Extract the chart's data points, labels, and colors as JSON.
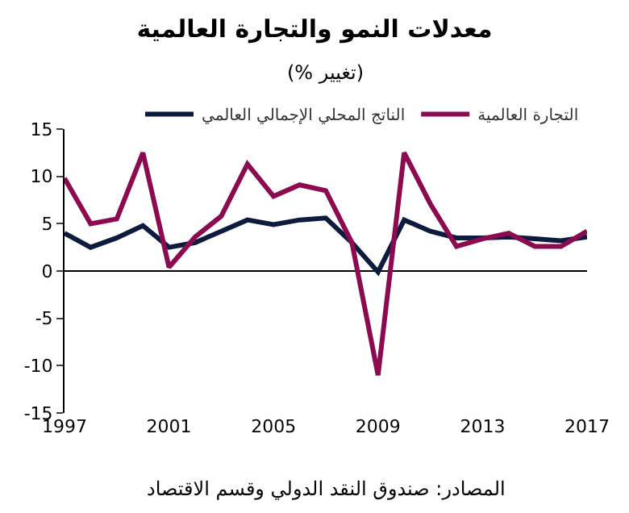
{
  "chart_data": {
    "type": "line",
    "title": "معدلات النمو والتجارة العالمية",
    "subtitle": "(% تغيير)",
    "x": [
      1997,
      1998,
      1999,
      2000,
      2001,
      2002,
      2003,
      2004,
      2005,
      2006,
      2007,
      2008,
      2009,
      2010,
      2011,
      2012,
      2013,
      2014,
      2015,
      2016,
      2017
    ],
    "series": [
      {
        "name": "الناتج المحلي الإجمالي العالمي",
        "color": "#0d1b3e",
        "values": [
          4.0,
          2.5,
          3.5,
          4.8,
          2.5,
          3.0,
          4.2,
          5.4,
          4.9,
          5.4,
          5.6,
          3.0,
          -0.1,
          5.4,
          4.2,
          3.5,
          3.5,
          3.6,
          3.4,
          3.2,
          3.6
        ]
      },
      {
        "name": "التجارة العالمية",
        "color": "#8b0a50",
        "values": [
          9.8,
          5.0,
          5.5,
          12.5,
          0.4,
          3.6,
          5.8,
          11.3,
          7.9,
          9.1,
          8.5,
          3.0,
          -11.0,
          12.5,
          7.1,
          2.6,
          3.4,
          4.0,
          2.6,
          2.6,
          4.2
        ]
      }
    ],
    "xlim": [
      1997,
      2017
    ],
    "xticks": [
      1997,
      2001,
      2005,
      2009,
      2013,
      2017
    ],
    "ylim": [
      -15,
      15
    ],
    "yticks": [
      -15,
      -10,
      -5,
      0,
      5,
      10,
      15
    ],
    "grid": false,
    "ref_lines": [
      {
        "axis": "y",
        "value": 0,
        "color": "#000000"
      }
    ],
    "legend": "top",
    "marker": "none",
    "line_style": "solid",
    "annotations": [
      "المصادر: صندوق النقد الدولي وقسم الاقتصاد"
    ]
  }
}
